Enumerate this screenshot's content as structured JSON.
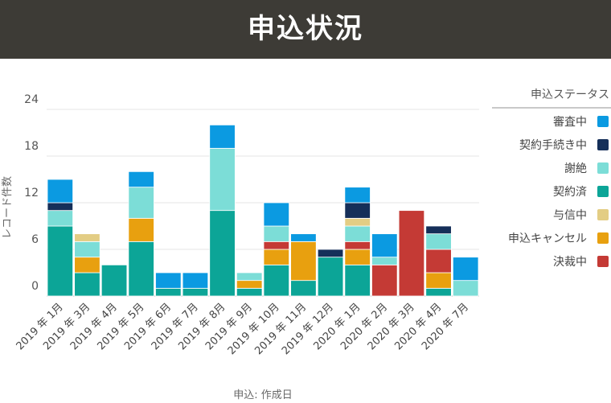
{
  "header": {
    "title": "申込状況"
  },
  "chart_data": {
    "type": "bar",
    "stacked": true,
    "ylabel": "レコード件数",
    "xlabel": "申込: 作成日",
    "yticks": [
      0,
      6,
      12,
      18,
      24
    ],
    "ylim": [
      0,
      24
    ],
    "grid": true,
    "legend_position": "right",
    "legend_title": "申込ステータス",
    "legend_items": [
      "審査中",
      "契約手続き中",
      "謝絶",
      "契約済",
      "与信中",
      "申込キャンセル",
      "決裁中"
    ],
    "categories": [
      "2019 年 1月",
      "2019 年 3月",
      "2019 年 4月",
      "2019 年 5月",
      "2019 年 6月",
      "2019 年 7月",
      "2019 年 8月",
      "2019 年 9月",
      "2019 年 10月",
      "2019 年 11月",
      "2019 年 12月",
      "2020 年 1月",
      "2020 年 2月",
      "2020 年 3月",
      "2020 年 4月",
      "2020 年 7月"
    ],
    "stack_order": [
      "契約済",
      "申込キャンセル",
      "決裁中",
      "謝絶",
      "与信中",
      "契約手続き中",
      "審査中"
    ],
    "series": [
      {
        "name": "契約済",
        "color": "#0ca597",
        "values": [
          9,
          3,
          4,
          7,
          1,
          1,
          11,
          1,
          4,
          2,
          5,
          4,
          0,
          0,
          1,
          0
        ]
      },
      {
        "name": "申込キャンセル",
        "color": "#e8a00f",
        "values": [
          0,
          2,
          0,
          3,
          0,
          0,
          0,
          1,
          2,
          5,
          0,
          2,
          0,
          0,
          2,
          0
        ]
      },
      {
        "name": "決裁中",
        "color": "#c43a35",
        "values": [
          0,
          0,
          0,
          0,
          0,
          0,
          0,
          0,
          1,
          0,
          0,
          1,
          4,
          11,
          3,
          0
        ]
      },
      {
        "name": "謝絶",
        "color": "#7cddd7",
        "values": [
          2,
          2,
          0,
          4,
          0,
          0,
          8,
          1,
          2,
          0,
          0,
          2,
          1,
          0,
          2,
          2
        ]
      },
      {
        "name": "与信中",
        "color": "#e3cd84",
        "values": [
          0,
          1,
          0,
          0,
          0,
          0,
          0,
          0,
          0,
          0,
          0,
          1,
          0,
          0,
          0,
          0
        ]
      },
      {
        "name": "契約手続き中",
        "color": "#152f59",
        "values": [
          1,
          0,
          0,
          0,
          0,
          0,
          0,
          0,
          0,
          0,
          1,
          2,
          0,
          0,
          1,
          0
        ]
      },
      {
        "name": "審査中",
        "color": "#0b9ae1",
        "values": [
          3,
          0,
          0,
          2,
          2,
          2,
          3,
          0,
          3,
          1,
          0,
          2,
          3,
          0,
          0,
          3
        ]
      }
    ]
  }
}
